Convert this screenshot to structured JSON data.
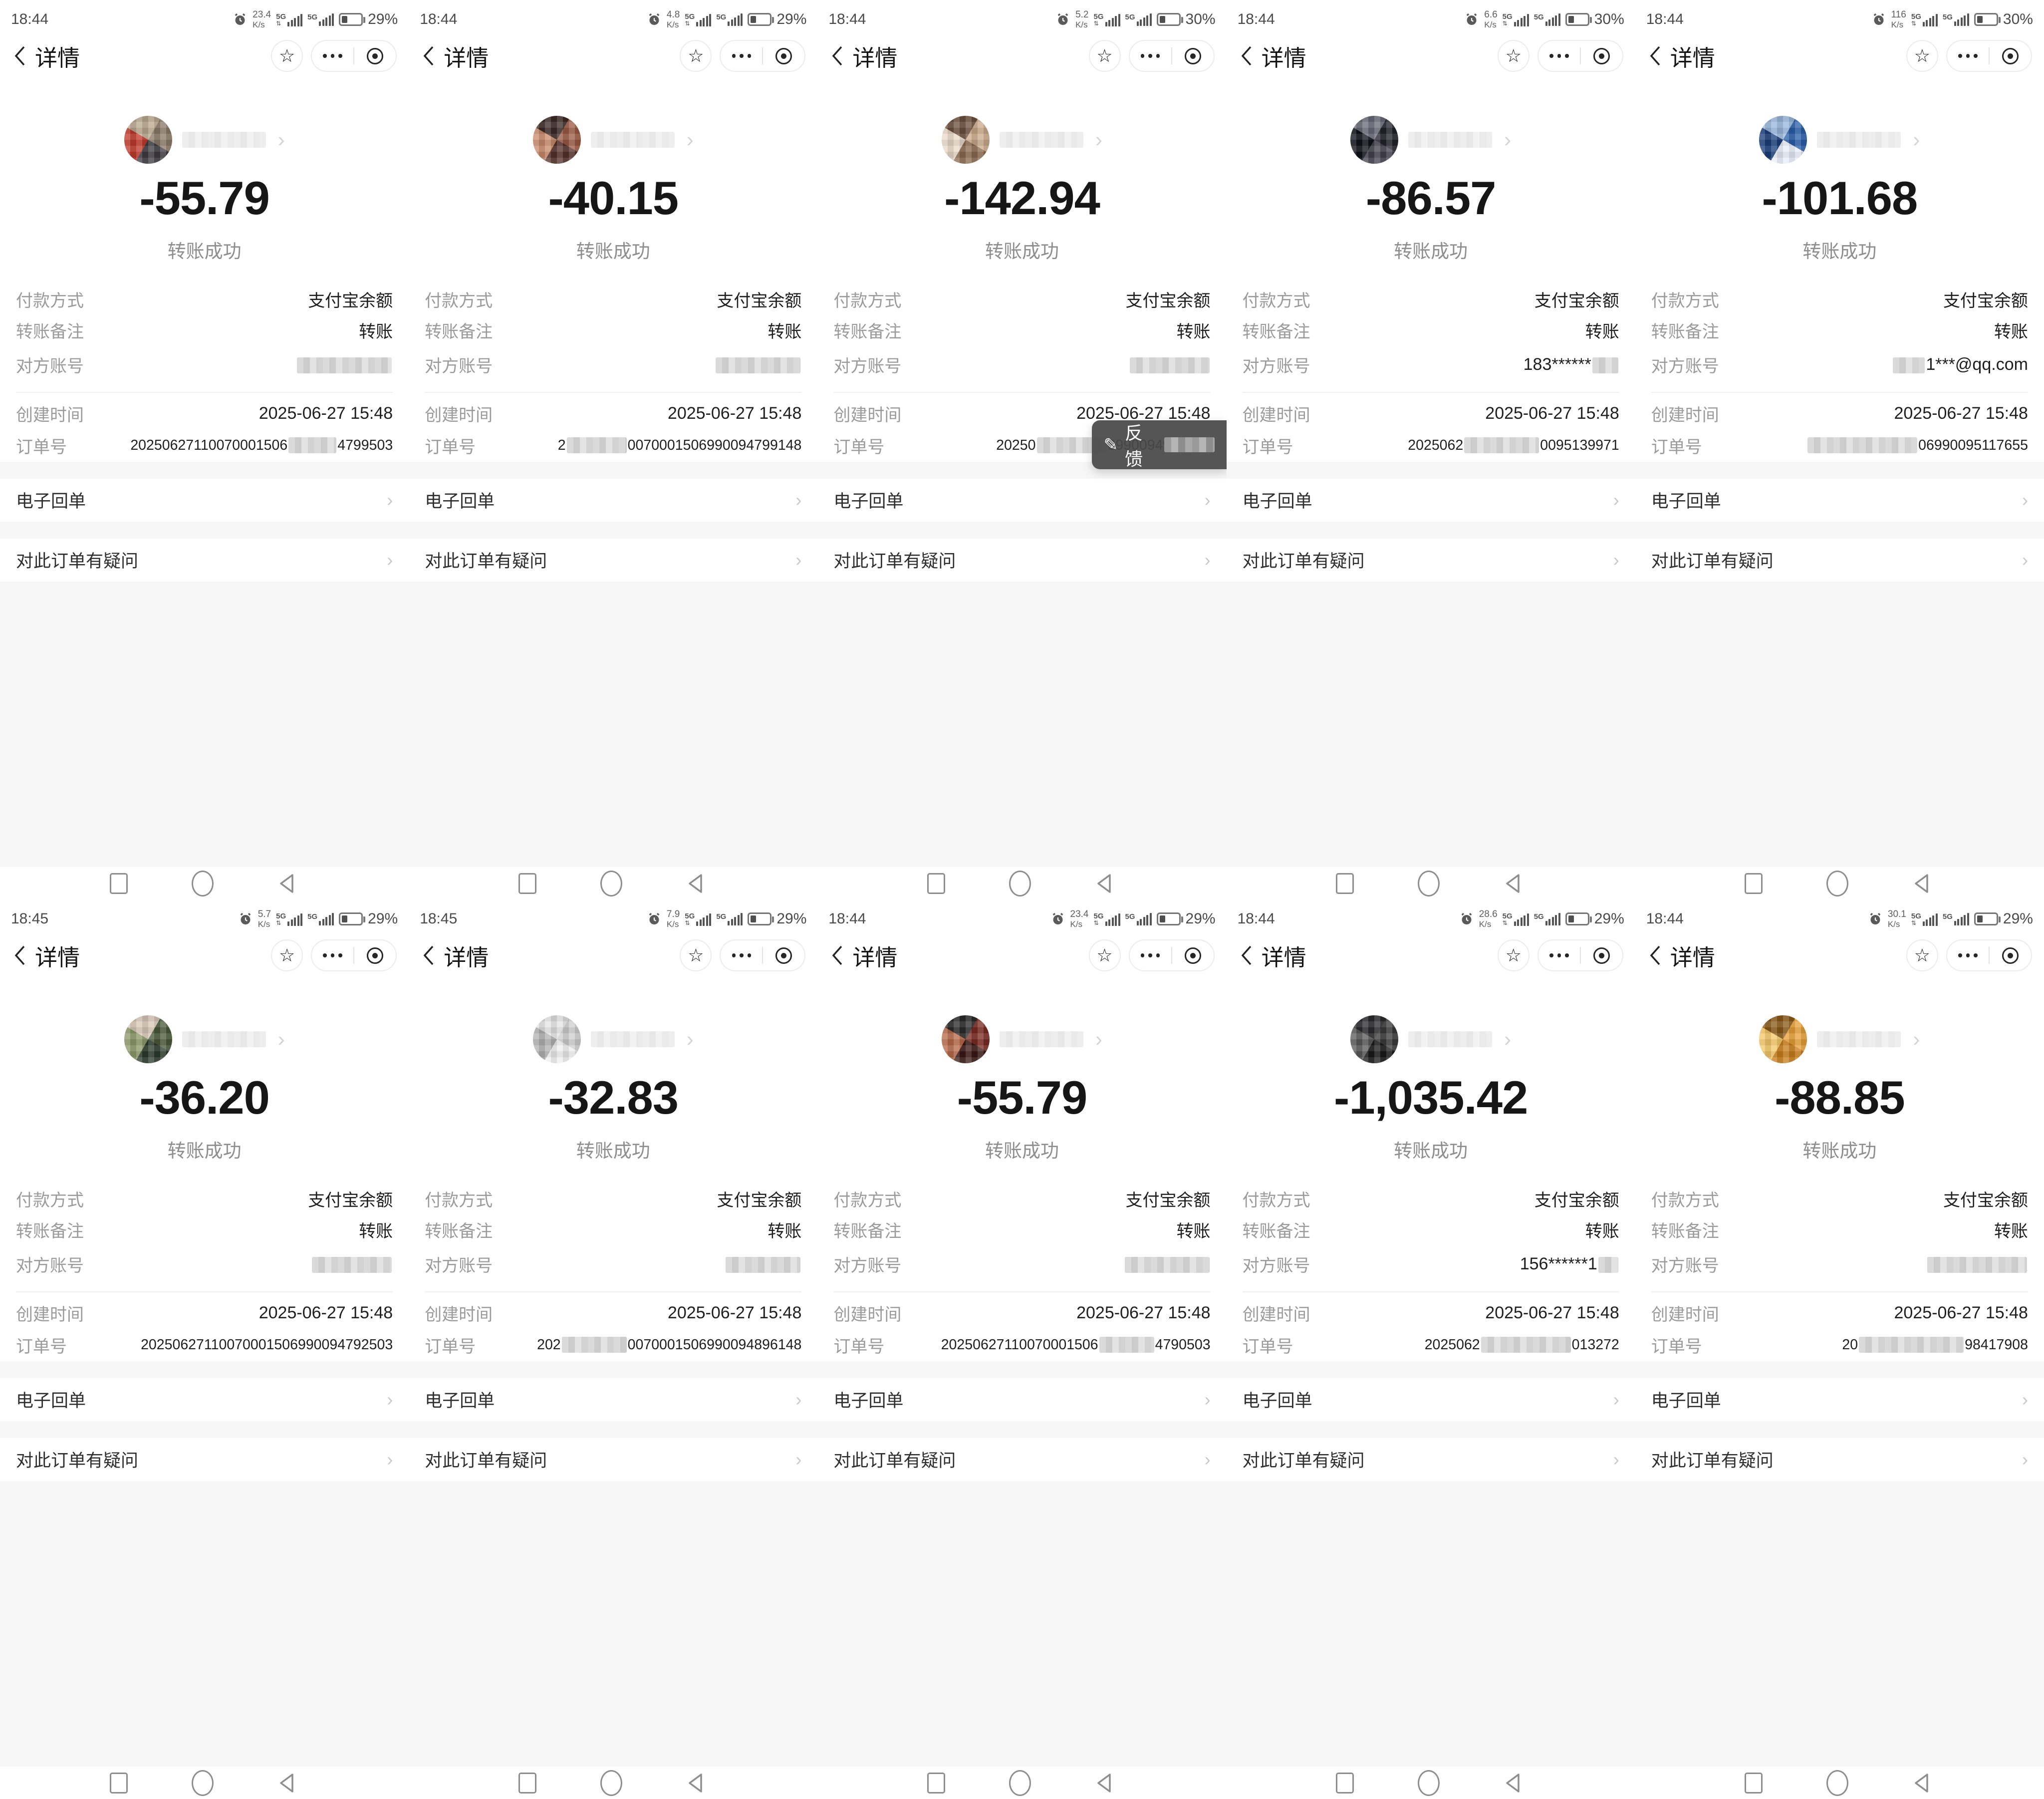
{
  "shared": {
    "title": "详情",
    "transfer_status": "转账成功",
    "labels": {
      "payment": "付款方式",
      "note": "转账备注",
      "account": "对方账号",
      "created": "创建时间",
      "order": "订单号"
    },
    "values": {
      "payment": "支付宝余额",
      "note": "转账"
    },
    "created_time": "2025-06-27 15:48",
    "receipt": "电子回单",
    "question": "对此订单有疑问",
    "net_label": "5G",
    "speed_unit": "K/s",
    "feedback_label": "反馈",
    "colors": {
      "text_dark": "#161616",
      "label_gray": "#9b9b9b",
      "bg_gray": "#f6f6f6",
      "toast_bg": "#484848"
    }
  },
  "panels": [
    {
      "time": "18:44",
      "speed": "23.4",
      "battery": "29%",
      "amount": "-55.79",
      "acc_pre": "",
      "acc_band": 190,
      "acc_post": "",
      "ord_pre": "20250627110070001506",
      "ord_band": 96,
      "ord_post": "4799503",
      "avatar_colors": [
        "#8a7a68",
        "#3d3b42",
        "#c0392b",
        "#baa98e"
      ],
      "feedback": false
    },
    {
      "time": "18:44",
      "speed": "4.8",
      "battery": "29%",
      "amount": "-40.15",
      "acc_pre": "",
      "acc_band": 170,
      "acc_post": "",
      "ord_pre": "2",
      "ord_band": 120,
      "ord_post": "0070001506990094799148",
      "avatar_colors": [
        "#9a5a43",
        "#55302a",
        "#c98a6a",
        "#3b2a26"
      ],
      "feedback": false
    },
    {
      "time": "18:44",
      "speed": "5.2",
      "battery": "30%",
      "amount": "-142.94",
      "acc_pre": "",
      "acc_band": 160,
      "acc_post": "",
      "ord_pre": "20250",
      "ord_band": 140,
      "ord_post": "6990094999157",
      "avatar_colors": [
        "#caa98a",
        "#8a6a4f",
        "#e9d9c9",
        "#6b503d"
      ],
      "feedback": true
    },
    {
      "time": "18:44",
      "speed": "6.6",
      "battery": "30%",
      "amount": "-86.57",
      "acc_pre": "183******",
      "acc_band": 52,
      "acc_post": "",
      "ord_pre": "2025062",
      "ord_band": 150,
      "ord_post": "0095139971",
      "avatar_colors": [
        "#23222b",
        "#44434f",
        "#101018",
        "#6a6a78"
      ],
      "feedback": false
    },
    {
      "time": "18:44",
      "speed": "116",
      "battery": "30%",
      "amount": "-101.68",
      "acc_pre": "",
      "acc_band": 64,
      "acc_post": "1***@qq.com",
      "ord_pre": "",
      "ord_band": 220,
      "ord_post": "06990095117655",
      "avatar_colors": [
        "#2a5fa8",
        "#e8eef8",
        "#1a3f7a",
        "#9ab8dd"
      ],
      "feedback": false
    },
    {
      "time": "18:45",
      "speed": "5.7",
      "battery": "29%",
      "amount": "-36.20",
      "acc_pre": "",
      "acc_band": 160,
      "acc_post": "",
      "ord_pre": "20250627110070001506990094792503",
      "ord_band": 0,
      "ord_post": "",
      "avatar_colors": [
        "#4a5a3a",
        "#2c3a2c",
        "#8c9a6a",
        "#d8c8b8"
      ],
      "feedback": false
    },
    {
      "time": "18:45",
      "speed": "7.9",
      "battery": "29%",
      "amount": "-32.83",
      "acc_pre": "",
      "acc_band": 150,
      "acc_post": "",
      "ord_pre": "202",
      "ord_band": 130,
      "ord_post": "0070001506990094896148",
      "avatar_colors": [
        "#cfcfcf",
        "#efefef",
        "#b2b2b2",
        "#e4e4e4"
      ],
      "feedback": false
    },
    {
      "time": "18:44",
      "speed": "23.4",
      "battery": "29%",
      "amount": "-55.79",
      "acc_pre": "",
      "acc_band": 170,
      "acc_post": "",
      "ord_pre": "20250627110070001506",
      "ord_band": 110,
      "ord_post": "4790503",
      "avatar_colors": [
        "#7a2a22",
        "#3a1a16",
        "#b86a4a",
        "#2a2a2a"
      ],
      "feedback": false
    },
    {
      "time": "18:44",
      "speed": "28.6",
      "battery": "29%",
      "amount": "-1,035.42",
      "acc_pre": "156******1",
      "acc_band": 40,
      "acc_post": "",
      "ord_pre": "2025062",
      "ord_band": 180,
      "ord_post": "013272",
      "avatar_colors": [
        "#3a3a3a",
        "#191919",
        "#5a5a5a",
        "#2c2c30"
      ],
      "feedback": false
    },
    {
      "time": "18:44",
      "speed": "30.1",
      "battery": "29%",
      "amount": "-88.85",
      "acc_pre": "",
      "acc_band": 200,
      "acc_post": "",
      "ord_pre": "20",
      "ord_band": 210,
      "ord_post": "98417908",
      "avatar_colors": [
        "#e8a13a",
        "#c97d1a",
        "#f5c86a",
        "#8a5a1a"
      ],
      "feedback": false
    }
  ]
}
